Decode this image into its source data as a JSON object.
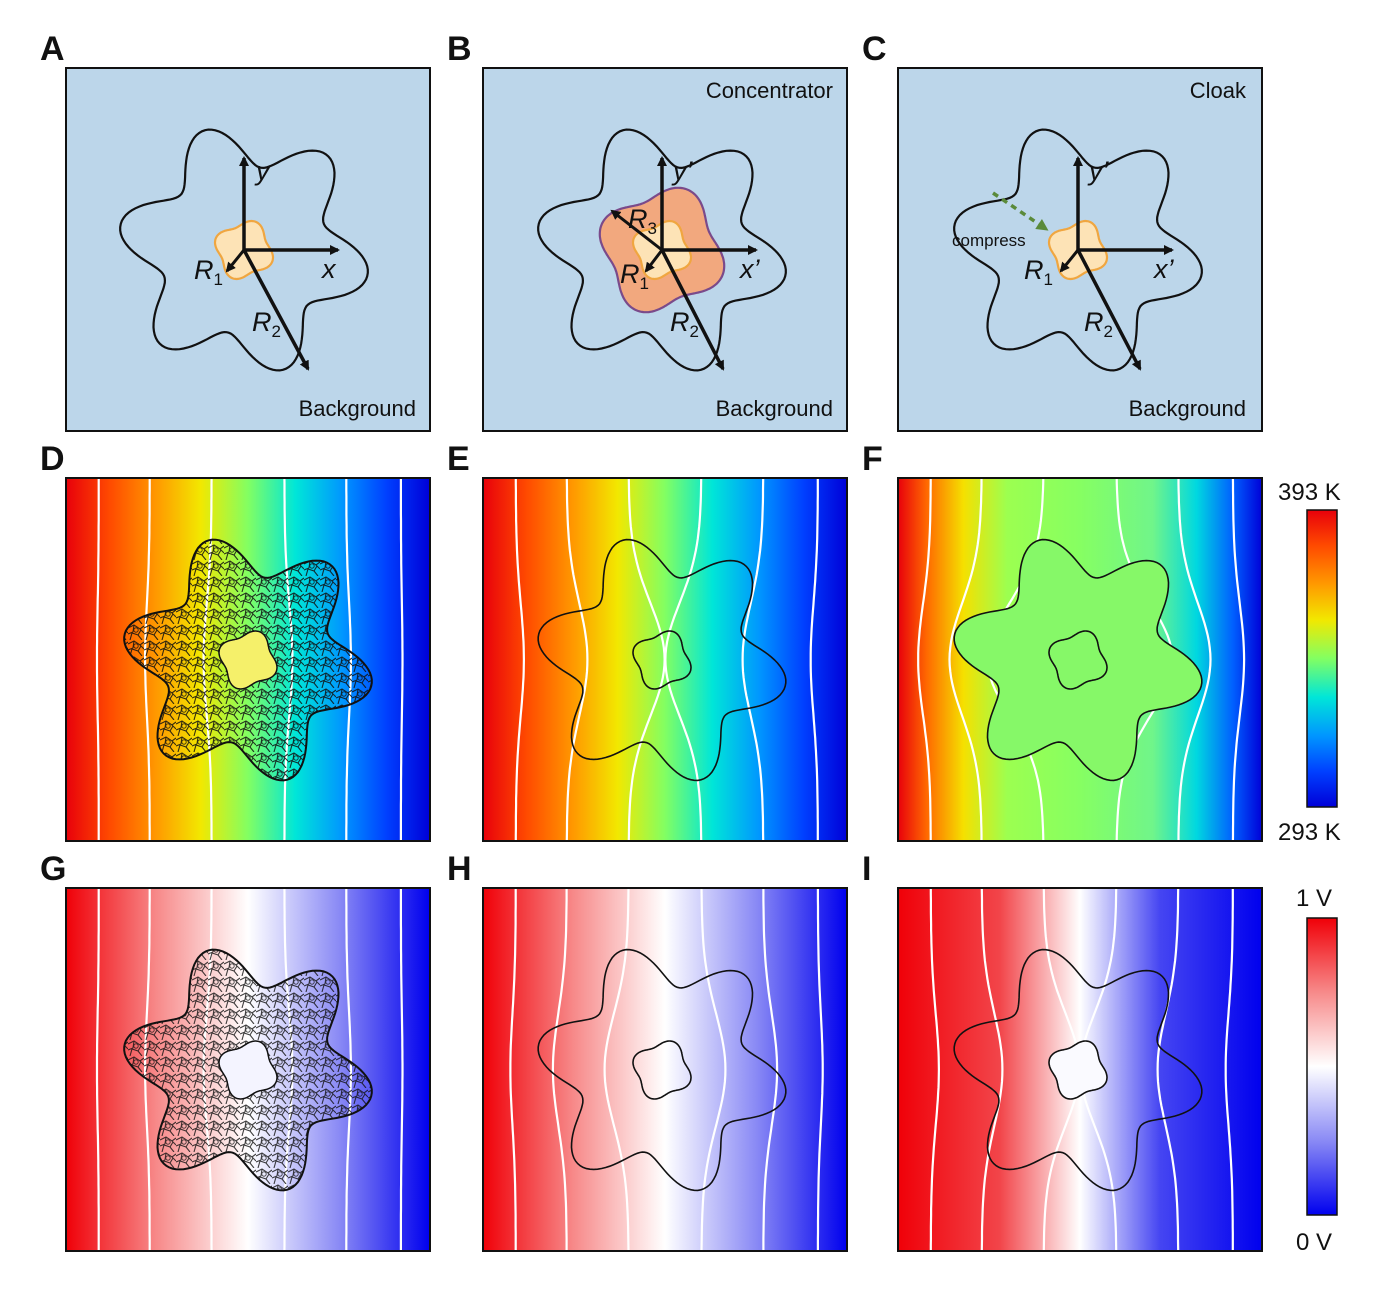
{
  "panels": {
    "A": {
      "label": "A",
      "bottom_text": "Background",
      "x_axis": "x",
      "y_axis": "y",
      "r1": "R",
      "r1_sub": "1",
      "r2": "R",
      "r2_sub": "2"
    },
    "B": {
      "label": "B",
      "top_text": "Concentrator",
      "bottom_text": "Background",
      "x_axis": "x’",
      "y_axis": "y’",
      "r1": "R",
      "r1_sub": "1",
      "r2": "R",
      "r2_sub": "2",
      "r3": "R",
      "r3_sub": "3"
    },
    "C": {
      "label": "C",
      "top_text": "Cloak",
      "bottom_text": "Background",
      "x_axis": "x’",
      "y_axis": "y’",
      "r1": "R",
      "r1_sub": "1",
      "r2": "R",
      "r2_sub": "2",
      "arrow_text": "compress"
    },
    "D": {
      "label": "D"
    },
    "E": {
      "label": "E"
    },
    "F": {
      "label": "F"
    },
    "G": {
      "label": "G"
    },
    "H": {
      "label": "H"
    },
    "I": {
      "label": "I"
    }
  },
  "colorbars": {
    "thermal": {
      "max_label": "393 K",
      "min_label": "293 K"
    },
    "electric": {
      "max_label": "1 V",
      "min_label": "0 V"
    }
  },
  "colors": {
    "schematic_bg": "#bcd6ea",
    "inner_region": "#fde3b6",
    "inner_border": "#f0a640",
    "shell_region": "#f2a87e",
    "shell_border": "#7a4a8a",
    "compress_arrow": "#5a8a3a"
  }
}
